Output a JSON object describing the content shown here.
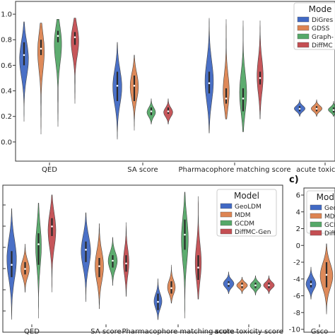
{
  "colors": {
    "blue": "#4169c4",
    "orange": "#dd8452",
    "green": "#55a868",
    "red": "#c44e52",
    "median": "#ffffff",
    "axis": "#333333"
  },
  "chart_data": [
    {
      "type": "violin",
      "panel": "top",
      "categories": [
        "QED",
        "SA score",
        "Pharmacophore matching score",
        "acute toxicity sc"
      ],
      "yticks": [
        "0.0",
        "0.2",
        "0.4",
        "0.6",
        "0.8",
        "1.0"
      ],
      "ylim": [
        -0.15,
        1.1
      ],
      "legend": {
        "title": "Mode",
        "placement": "top-right",
        "entries": [
          "DiGres",
          "GDSS",
          "Graph-",
          "DiffMC"
        ]
      },
      "series": [
        {
          "name": "DiGres",
          "color_key": "blue",
          "violins": [
            {
              "min": 0.16,
              "max": 0.94,
              "median": 0.68,
              "q1": 0.6,
              "q3": 0.78,
              "peak": 0.68,
              "width": 0.85
            },
            {
              "min": 0.02,
              "max": 0.78,
              "median": 0.44,
              "q1": 0.32,
              "q3": 0.55,
              "peak": 0.44,
              "width": 0.8
            },
            {
              "min": 0.07,
              "max": 0.97,
              "median": 0.46,
              "q1": 0.38,
              "q3": 0.55,
              "peak": 0.46,
              "width": 0.75
            },
            {
              "min": 0.2,
              "max": 0.33,
              "median": 0.26,
              "q1": 0.24,
              "q3": 0.28,
              "peak": 0.26,
              "width": 0.95
            }
          ]
        },
        {
          "name": "GDSS",
          "color_key": "orange",
          "violins": [
            {
              "min": 0.06,
              "max": 0.93,
              "median": 0.73,
              "q1": 0.68,
              "q3": 0.8,
              "peak": 0.78,
              "width": 0.8
            },
            {
              "min": 0.09,
              "max": 0.68,
              "median": 0.44,
              "q1": 0.32,
              "q3": 0.52,
              "peak": 0.45,
              "width": 0.75
            },
            {
              "min": 0.18,
              "max": 0.96,
              "median": 0.34,
              "q1": 0.3,
              "q3": 0.42,
              "peak": 0.34,
              "width": 0.7
            },
            {
              "min": 0.2,
              "max": 0.33,
              "median": 0.26,
              "q1": 0.24,
              "q3": 0.28,
              "peak": 0.26,
              "width": 0.95
            }
          ]
        },
        {
          "name": "Graph-",
          "color_key": "green",
          "violins": [
            {
              "min": 0.12,
              "max": 0.96,
              "median": 0.83,
              "q1": 0.78,
              "q3": 0.87,
              "peak": 0.84,
              "width": 0.95
            },
            {
              "min": 0.14,
              "max": 0.34,
              "median": 0.24,
              "q1": 0.21,
              "q3": 0.27,
              "peak": 0.23,
              "width": 0.75
            },
            {
              "min": 0.08,
              "max": 0.95,
              "median": 0.34,
              "q1": 0.24,
              "q3": 0.42,
              "peak": 0.34,
              "width": 0.7
            },
            {
              "min": 0.2,
              "max": 0.32,
              "median": 0.25,
              "q1": 0.23,
              "q3": 0.27,
              "peak": 0.25,
              "width": 0.95
            }
          ]
        },
        {
          "name": "DiffMC",
          "color_key": "red",
          "violins": [
            {
              "min": 0.3,
              "max": 0.97,
              "median": 0.82,
              "q1": 0.76,
              "q3": 0.86,
              "peak": 0.84,
              "width": 0.9
            },
            {
              "min": 0.14,
              "max": 0.34,
              "median": 0.24,
              "q1": 0.22,
              "q3": 0.27,
              "peak": 0.23,
              "width": 0.8
            },
            {
              "min": 0.18,
              "max": 0.95,
              "median": 0.5,
              "q1": 0.45,
              "q3": 0.55,
              "peak": 0.5,
              "width": 0.55
            },
            {
              "min": 0.2,
              "max": 0.33,
              "median": 0.26,
              "q1": 0.24,
              "q3": 0.28,
              "peak": 0.26,
              "width": 0.95
            }
          ]
        }
      ]
    },
    {
      "type": "violin",
      "panel": "bottom-left",
      "categories": [
        "QED",
        "SA score",
        "Pharmacophore matching score",
        "acute toxicity score"
      ],
      "yticks": [],
      "ylim": [
        0,
        1
      ],
      "legend": {
        "title": "Model",
        "placement": "top-center",
        "entries": [
          "GeoLDM",
          "MDM",
          "GCDM",
          "DiffMC-Gen"
        ]
      },
      "series": [
        {
          "name": "GeoLDM",
          "color_key": "blue",
          "violins": [
            {
              "min": 0.05,
              "max": 0.86,
              "median": 0.45,
              "q1": 0.36,
              "q3": 0.55,
              "peak": 0.5,
              "width": 0.85
            },
            {
              "min": 0.18,
              "max": 0.83,
              "median": 0.56,
              "q1": 0.47,
              "q3": 0.62,
              "peak": 0.56,
              "width": 0.85
            },
            {
              "min": 0.05,
              "max": 0.35,
              "median": 0.18,
              "q1": 0.12,
              "q3": 0.24,
              "peak": 0.18,
              "width": 0.7
            },
            {
              "min": 0.24,
              "max": 0.4,
              "median": 0.31,
              "q1": 0.29,
              "q3": 0.33,
              "peak": 0.31,
              "width": 0.95
            }
          ]
        },
        {
          "name": "MDM",
          "color_key": "orange",
          "violins": [
            {
              "min": 0.25,
              "max": 0.6,
              "median": 0.42,
              "q1": 0.38,
              "q3": 0.47,
              "peak": 0.42,
              "width": 0.75
            },
            {
              "min": 0.13,
              "max": 0.75,
              "median": 0.44,
              "q1": 0.36,
              "q3": 0.5,
              "peak": 0.44,
              "width": 0.75
            },
            {
              "min": 0.17,
              "max": 0.45,
              "median": 0.28,
              "q1": 0.24,
              "q3": 0.33,
              "peak": 0.28,
              "width": 0.7
            },
            {
              "min": 0.24,
              "max": 0.36,
              "median": 0.3,
              "q1": 0.28,
              "q3": 0.32,
              "peak": 0.3,
              "width": 0.95
            }
          ]
        },
        {
          "name": "GCDM",
          "color_key": "green",
          "violins": [
            {
              "min": 0.06,
              "max": 0.9,
              "median": 0.6,
              "q1": 0.45,
              "q3": 0.68,
              "peak": 0.62,
              "width": 0.55
            },
            {
              "min": 0.3,
              "max": 0.65,
              "median": 0.48,
              "q1": 0.43,
              "q3": 0.52,
              "peak": 0.48,
              "width": 0.8
            },
            {
              "min": 0.06,
              "max": 0.98,
              "median": 0.67,
              "q1": 0.56,
              "q3": 0.78,
              "peak": 0.67,
              "width": 0.65
            },
            {
              "min": 0.23,
              "max": 0.37,
              "median": 0.3,
              "q1": 0.28,
              "q3": 0.32,
              "peak": 0.3,
              "width": 0.95
            }
          ]
        },
        {
          "name": "DiffMC-Gen",
          "color_key": "red",
          "violins": [
            {
              "min": 0.25,
              "max": 0.96,
              "median": 0.73,
              "q1": 0.66,
              "q3": 0.79,
              "peak": 0.73,
              "width": 0.75
            },
            {
              "min": 0.22,
              "max": 0.76,
              "median": 0.46,
              "q1": 0.4,
              "q3": 0.52,
              "peak": 0.46,
              "width": 0.5
            },
            {
              "min": 0.2,
              "max": 0.95,
              "median": 0.43,
              "q1": 0.34,
              "q3": 0.52,
              "peak": 0.43,
              "width": 0.6
            },
            {
              "min": 0.24,
              "max": 0.37,
              "median": 0.3,
              "q1": 0.28,
              "q3": 0.32,
              "peak": 0.3,
              "width": 0.95
            }
          ]
        }
      ]
    },
    {
      "type": "violin",
      "panel": "c",
      "panel_label": "c)",
      "categories": [
        "Gsco"
      ],
      "yticks": [
        "6",
        "4",
        "2",
        "0",
        "-2",
        "-4",
        "-6",
        "-8",
        "-10"
      ],
      "ylim": [
        -10,
        6
      ],
      "legend": {
        "title": "Modi",
        "placement": "top-right",
        "entries": [
          "GeoL",
          "MDM",
          "GCDM",
          "Diff"
        ]
      },
      "series": [
        {
          "name": "GeoL",
          "color_key": "blue",
          "violins": [
            {
              "min": -6.4,
              "max": -2.6,
              "median": -4.6,
              "q1": -5.0,
              "q3": -4.2,
              "peak": -4.6,
              "width": 0.7
            }
          ]
        },
        {
          "name": "MDM",
          "color_key": "orange",
          "violins": [
            {
              "min": -8.2,
              "max": 0.2,
              "median": -3.5,
              "q1": -5.0,
              "q3": -2.0,
              "peak": -3.5,
              "width": 0.9
            }
          ]
        },
        {
          "name": "GCDM",
          "color_key": "green",
          "violins": [
            {
              "min": -8.6,
              "max": -2.4,
              "median": -5.3,
              "q1": -6.0,
              "q3": -4.5,
              "peak": -5.3,
              "width": 0.9
            }
          ]
        }
      ]
    }
  ]
}
